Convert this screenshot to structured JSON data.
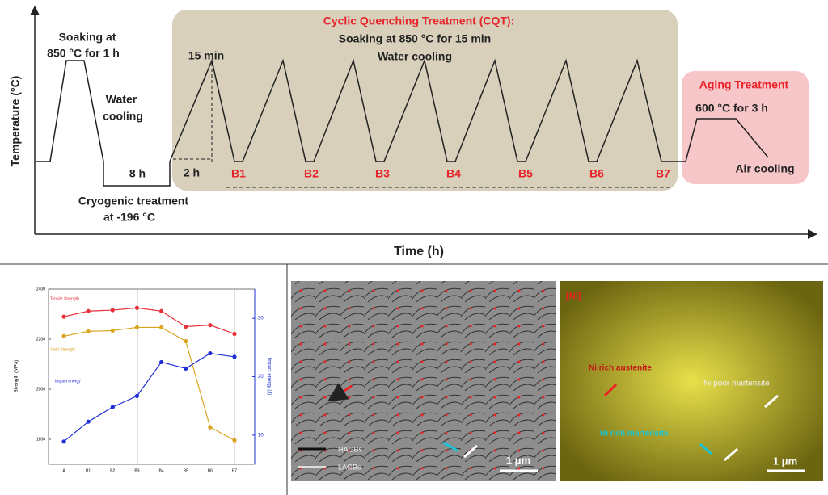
{
  "schematic": {
    "y_axis_label": "Temperature (°C)",
    "x_axis_label": "Time (h)",
    "soak_line1": "Soaking at",
    "soak_line2": "850 °C for 1 h",
    "water_line1": "Water",
    "water_line2": "cooling",
    "hold_time": "8 h",
    "cryo_line1": "Cryogenic treatment",
    "cryo_line2": "at -196 °C",
    "interval": "2 h",
    "cycle_time": "15 min",
    "cqt_title": "Cyclic Quenching Treatment (CQT):",
    "cqt_line1": "Soaking at 850 °C for 15 min",
    "cqt_line2": "Water cooling",
    "cycles": [
      "B1",
      "B2",
      "B3",
      "B4",
      "B5",
      "B6",
      "B7"
    ],
    "aging_title": "Aging Treatment",
    "aging_line1": "600 °C for 3 h",
    "aging_line2": "Air cooling"
  },
  "chart_data": {
    "type": "line",
    "categories": [
      "A",
      "B1",
      "B2",
      "B3",
      "B4",
      "B5",
      "B6",
      "B7"
    ],
    "ylabel": "Strength (MPa)",
    "y2label": "Impact energy (J)",
    "ylim": [
      1700,
      2400
    ],
    "yticks": [
      1800,
      2000,
      2200,
      2400
    ],
    "y2lim": [
      5,
      35
    ],
    "y2ticks": [
      10,
      20,
      30
    ],
    "series": [
      {
        "name": "Tensile Strength",
        "color": "#e8313a",
        "values": [
          2290,
          2312,
          2316,
          2325,
          2312,
          2250,
          2256,
          2221
        ]
      },
      {
        "name": "Yield Strength",
        "color": "#d9a520",
        "values": [
          2212,
          2231,
          2234,
          2247,
          2247,
          2192,
          1848,
          1796
        ]
      },
      {
        "name": "Impact energy",
        "color": "#1f2fd6",
        "axis": "y2",
        "values": [
          8.9,
          12.3,
          14.8,
          16.7,
          22.5,
          21.4,
          24,
          23.4
        ]
      }
    ]
  },
  "micrographs": {
    "left_legend": [
      "HAGBs",
      "LAGBs"
    ],
    "left_scale": "1 μm",
    "map_label": "[Ni]",
    "ni_rich_austenite": "Ni rich austenite",
    "ni_poor_martensite": "Ni poor martensite",
    "ni_rich_martensite": "Ni rich martensite",
    "right_scale": "1 μm"
  }
}
